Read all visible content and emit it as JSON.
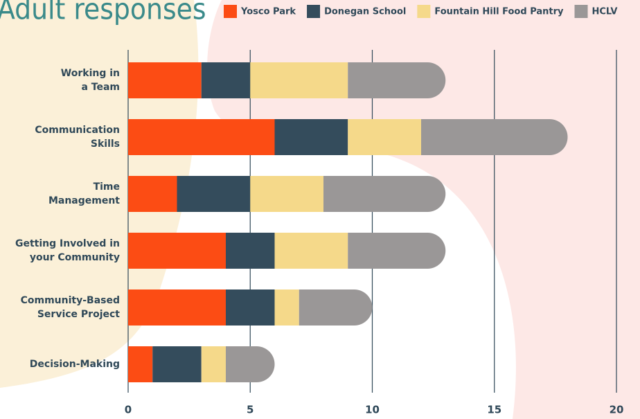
{
  "chart_data": {
    "type": "stacked-barh",
    "title": "Adult responses",
    "categories": [
      "Working in\na Team",
      "Communication\nSkills",
      "Time\nManagement",
      "Getting Involved in\nyour Community",
      "Community-Based\nService Project",
      "Decision-Making"
    ],
    "series": [
      {
        "name": "Yosco Park",
        "color": "#fc4c14",
        "values": [
          3,
          6,
          2,
          4,
          4,
          1
        ]
      },
      {
        "name": "Donegan School",
        "color": "#344c5c",
        "values": [
          2,
          3,
          3,
          2,
          2,
          2
        ]
      },
      {
        "name": "Fountain Hill Food Pantry",
        "color": "#f5d98a",
        "values": [
          4,
          3,
          3,
          3,
          1,
          1
        ]
      },
      {
        "name": "HCLV",
        "color": "#9a9797",
        "values": [
          4,
          6,
          5,
          4,
          3,
          2
        ]
      }
    ],
    "xlim": [
      0,
      20
    ],
    "xticks": [
      0,
      5,
      10,
      15,
      20
    ],
    "grid": true,
    "legend": "top"
  }
}
